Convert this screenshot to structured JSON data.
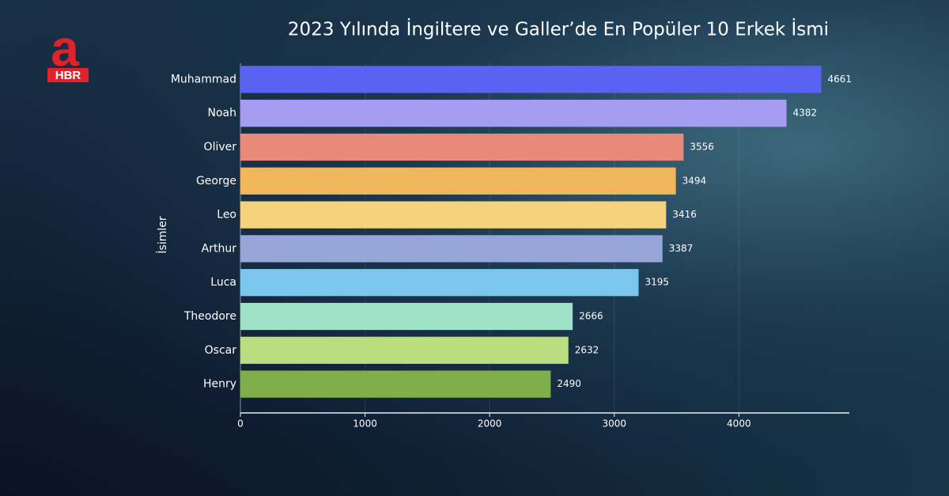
{
  "logo": {
    "letter": "a",
    "text": "HBR"
  },
  "chart_data": {
    "type": "bar",
    "orientation": "horizontal",
    "title": "2023 Yılında İngiltere ve Galler’de En Popüler 10 Erkek İsmi",
    "y_label": "İsimler",
    "categories": [
      "Muhammad",
      "Noah",
      "Oliver",
      "George",
      "Leo",
      "Arthur",
      "Luca",
      "Theodore",
      "Oscar",
      "Henry"
    ],
    "values": [
      4661,
      4382,
      3556,
      3494,
      3416,
      3387,
      3195,
      2666,
      2632,
      2490
    ],
    "colors": [
      "#5a62f2",
      "#a89cf2",
      "#e8897a",
      "#f0b65c",
      "#f5d37c",
      "#97a6d8",
      "#7cc6ee",
      "#a0e2c9",
      "#b9dd80",
      "#7fae4b"
    ],
    "xlim": [
      0,
      4880
    ],
    "xticks": [
      0,
      1000,
      2000,
      3000,
      4000
    ],
    "grid": true
  }
}
